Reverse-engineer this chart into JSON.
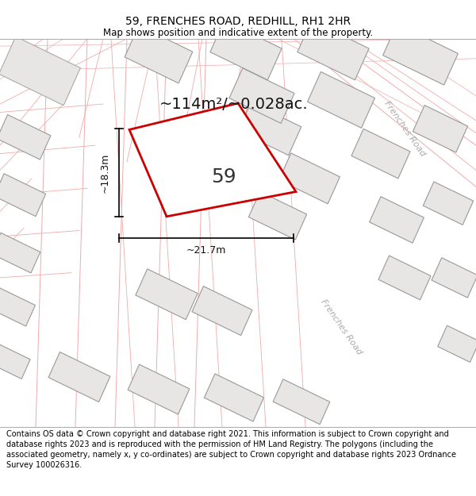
{
  "title": "59, FRENCHES ROAD, REDHILL, RH1 2HR",
  "subtitle": "Map shows position and indicative extent of the property.",
  "footer": "Contains OS data © Crown copyright and database right 2021. This information is subject to Crown copyright and database rights 2023 and is reproduced with the permission of HM Land Registry. The polygons (including the associated geometry, namely x, y co-ordinates) are subject to Crown copyright and database rights 2023 Ordnance Survey 100026316.",
  "area_label": "~114m²/~0.028ac.",
  "property_number": "59",
  "width_label": "~21.7m",
  "height_label": "~18.3m",
  "road_label_diag": "Frenches Road",
  "road_label_right": "Frenches Road",
  "map_bg": "#ffffff",
  "plot_color": "#cc0000",
  "building_fill": "#e8e6e4",
  "building_stroke": "#aaaaaa",
  "road_line_color": "#f0aaaa",
  "parcel_line_color": "#f0aaaa",
  "title_fontsize": 10,
  "subtitle_fontsize": 8.5,
  "footer_fontsize": 7.0,
  "area_fontsize": 14,
  "number_fontsize": 18,
  "dim_fontsize": 9
}
